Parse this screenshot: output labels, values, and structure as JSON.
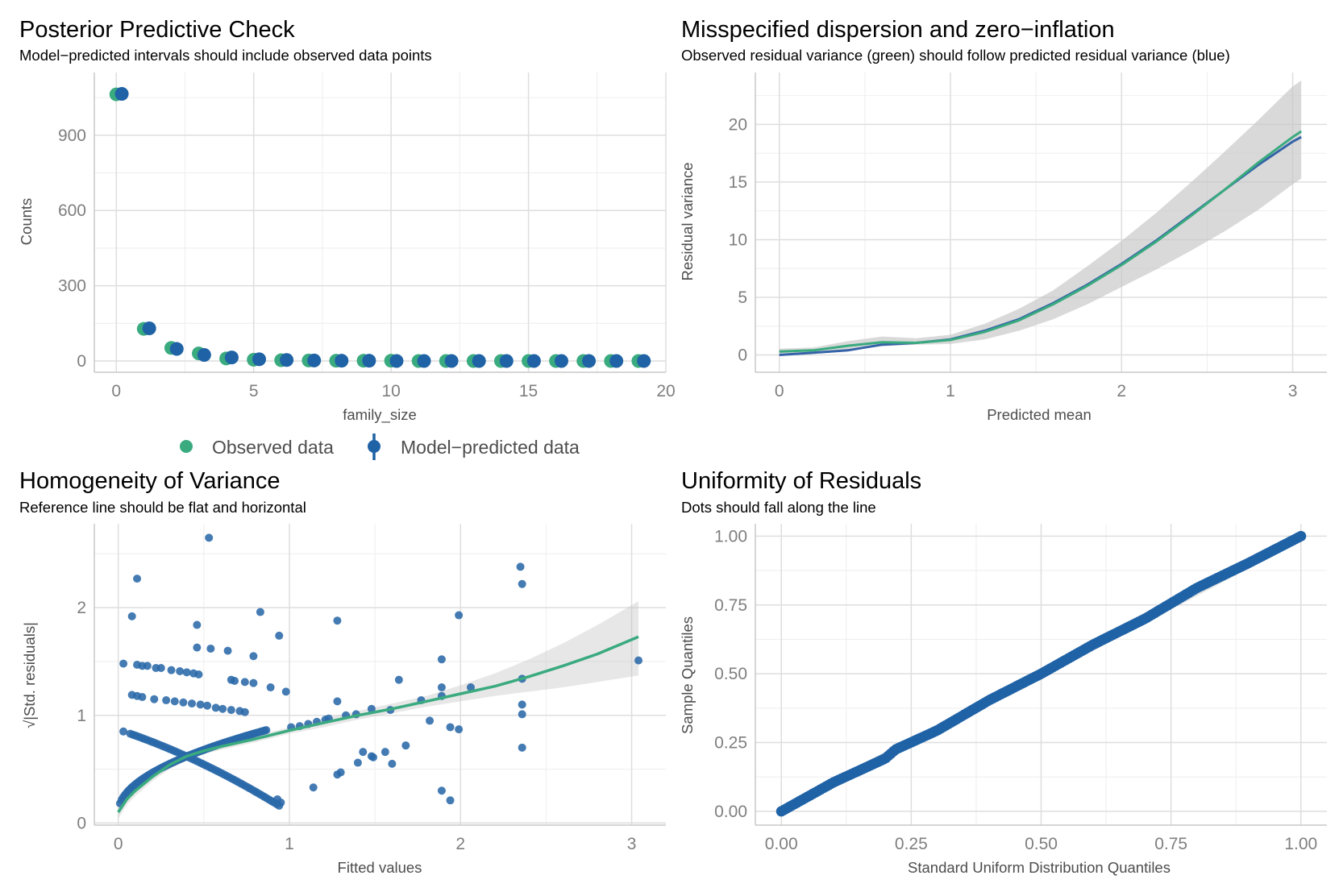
{
  "legend": {
    "observed": "Observed data",
    "predicted": "Model−predicted data"
  },
  "colors": {
    "observed": "#3aaa7f",
    "predicted": "#1f62a6",
    "points": "#2a69a8",
    "band": "#c4c4c4"
  },
  "chart_data": [
    {
      "id": "ppc",
      "type": "scatter",
      "title": "Posterior Predictive Check",
      "subtitle": "Model−predicted intervals should include observed data points",
      "xlabel": "family_size",
      "ylabel": "Counts",
      "xlim": [
        -0.8,
        20
      ],
      "ylim": [
        -45,
        1150
      ],
      "xticks": [
        0,
        5,
        10,
        15,
        20
      ],
      "yticks": [
        0,
        300,
        600,
        900
      ],
      "tick_labels_x": [
        "0",
        "5",
        "10",
        "15",
        "20"
      ],
      "tick_labels_y": [
        "0",
        "300",
        "600",
        "900"
      ],
      "series": [
        {
          "name": "Observed data",
          "x": [
            0,
            1,
            2,
            3,
            4,
            5,
            6,
            7,
            8,
            9,
            10,
            11,
            12,
            13,
            14,
            15,
            16,
            17,
            18,
            19
          ],
          "values": [
            1063,
            128,
            52,
            30,
            10,
            5,
            3,
            2,
            1,
            1,
            1,
            0,
            0,
            0,
            0,
            0,
            0,
            0,
            0,
            0
          ]
        },
        {
          "name": "Model−predicted data",
          "x": [
            0.2,
            1.2,
            2.2,
            3.2,
            4.2,
            5.2,
            6.2,
            7.2,
            8.2,
            9.2,
            10.2,
            11.2,
            12.2,
            13.2,
            14.2,
            15.2,
            16.2,
            17.2,
            18.2,
            19.2
          ],
          "values": [
            1065,
            130,
            48,
            24,
            14,
            7,
            4,
            2,
            1,
            1,
            0,
            0,
            0,
            0,
            0,
            0,
            0,
            0,
            0,
            0
          ]
        }
      ]
    },
    {
      "id": "disp",
      "type": "line",
      "title": "Misspecified dispersion and zero−inflation",
      "subtitle": "Observed residual variance (green) should follow predicted residual variance (blue)",
      "xlabel": "Predicted mean",
      "ylabel": "Residual variance",
      "xlim": [
        -0.14,
        3.2
      ],
      "ylim": [
        -1.5,
        24.5
      ],
      "xticks": [
        0,
        1,
        2,
        3
      ],
      "yticks": [
        0,
        5,
        10,
        15,
        20
      ],
      "tick_labels_x": [
        "0",
        "1",
        "2",
        "3"
      ],
      "tick_labels_y": [
        "0",
        "5",
        "10",
        "15",
        "20"
      ],
      "series": [
        {
          "name": "Observed residual variance",
          "x": [
            0,
            0.2,
            0.4,
            0.6,
            0.8,
            1.0,
            1.2,
            1.4,
            1.6,
            1.8,
            2.0,
            2.2,
            2.4,
            2.6,
            2.8,
            3.0,
            3.05
          ],
          "values": [
            0.3,
            0.4,
            0.8,
            1.1,
            1.05,
            1.3,
            2.0,
            3.0,
            4.4,
            6.0,
            7.8,
            9.8,
            12.0,
            14.3,
            16.7,
            18.9,
            19.4
          ]
        },
        {
          "name": "Predicted residual variance",
          "x": [
            0,
            0.2,
            0.4,
            0.6,
            0.8,
            1.0,
            1.2,
            1.4,
            1.6,
            1.8,
            2.0,
            2.2,
            2.4,
            2.6,
            2.8,
            3.0,
            3.05
          ],
          "values": [
            0.0,
            0.2,
            0.4,
            0.9,
            1.05,
            1.35,
            2.1,
            3.1,
            4.5,
            6.1,
            7.9,
            9.9,
            12.1,
            14.3,
            16.5,
            18.5,
            18.9
          ]
        },
        {
          "name": "Confidence band",
          "x": [
            0,
            0.2,
            0.4,
            0.6,
            0.8,
            1.0,
            1.2,
            1.4,
            1.6,
            1.8,
            2.0,
            2.2,
            2.4,
            2.6,
            2.8,
            3.0,
            3.05
          ],
          "lower": [
            0.0,
            0.15,
            0.4,
            0.75,
            0.9,
            0.95,
            1.35,
            2.1,
            3.1,
            4.4,
            5.9,
            7.4,
            9.0,
            10.7,
            12.6,
            14.8,
            15.3
          ],
          "upper": [
            0.55,
            0.65,
            1.2,
            1.6,
            1.45,
            1.75,
            2.7,
            4.0,
            5.6,
            7.7,
            9.9,
            12.3,
            14.9,
            17.6,
            20.4,
            23.3,
            23.8
          ]
        }
      ]
    },
    {
      "id": "homog",
      "type": "scatter",
      "title": "Homogeneity of Variance",
      "subtitle": "Reference line should be flat and horizontal",
      "xlabel": "Fitted values",
      "ylabel": "√|Std. residuals|",
      "xlim": [
        -0.14,
        3.2
      ],
      "ylim": [
        -0.02,
        2.78
      ],
      "xticks": [
        0,
        1,
        2,
        3
      ],
      "yticks": [
        0,
        1,
        2
      ],
      "tick_labels_x": [
        "0",
        "1",
        "2",
        "3"
      ],
      "tick_labels_y": [
        "0",
        "1",
        "2"
      ],
      "points": [
        [
          0.53,
          2.65
        ],
        [
          0.11,
          2.27
        ],
        [
          0.08,
          1.92
        ],
        [
          0.46,
          1.84
        ],
        [
          0.83,
          1.96
        ],
        [
          0.94,
          1.74
        ],
        [
          1.28,
          1.88
        ],
        [
          2.35,
          2.38
        ],
        [
          2.36,
          2.22
        ],
        [
          1.99,
          1.93
        ],
        [
          0.46,
          1.63
        ],
        [
          0.54,
          1.62
        ],
        [
          0.64,
          1.6
        ],
        [
          0.79,
          1.55
        ],
        [
          0.89,
          1.26
        ],
        [
          0.98,
          1.22
        ],
        [
          1.28,
          1.13
        ],
        [
          1.64,
          1.33
        ],
        [
          1.89,
          1.52
        ],
        [
          1.89,
          1.26
        ],
        [
          1.89,
          1.18
        ],
        [
          2.06,
          1.26
        ],
        [
          2.36,
          1.34
        ],
        [
          2.36,
          1.1
        ],
        [
          2.36,
          1.01
        ],
        [
          2.36,
          0.7
        ],
        [
          3.04,
          1.51
        ],
        [
          1.33,
          1.0
        ],
        [
          1.39,
          1.01
        ],
        [
          1.48,
          1.06
        ],
        [
          1.59,
          1.05
        ],
        [
          1.77,
          1.14
        ],
        [
          1.82,
          0.95
        ],
        [
          1.94,
          0.89
        ],
        [
          1.99,
          0.87
        ],
        [
          1.14,
          0.33
        ],
        [
          1.28,
          0.45
        ],
        [
          1.3,
          0.47
        ],
        [
          1.4,
          0.56
        ],
        [
          1.43,
          0.66
        ],
        [
          1.48,
          0.62
        ],
        [
          1.49,
          0.61
        ],
        [
          1.56,
          0.66
        ],
        [
          1.6,
          0.55
        ],
        [
          1.68,
          0.72
        ],
        [
          1.89,
          0.3
        ],
        [
          1.94,
          0.21
        ],
        [
          0.95,
          0.19
        ],
        [
          0.93,
          0.22
        ],
        [
          0.03,
          1.48
        ],
        [
          0.03,
          0.85
        ],
        [
          0.08,
          1.19
        ],
        [
          0.11,
          1.18
        ],
        [
          0.11,
          1.47
        ],
        [
          0.14,
          1.17
        ],
        [
          0.14,
          1.46
        ],
        [
          0.17,
          1.46
        ],
        [
          0.21,
          1.15
        ],
        [
          0.22,
          1.44
        ],
        [
          0.28,
          1.14
        ],
        [
          0.25,
          1.44
        ],
        [
          0.31,
          1.42
        ],
        [
          0.33,
          1.13
        ],
        [
          0.36,
          1.41
        ],
        [
          0.38,
          1.12
        ],
        [
          0.4,
          1.4
        ],
        [
          0.43,
          1.11
        ],
        [
          0.44,
          1.39
        ],
        [
          0.47,
          1.38
        ],
        [
          0.48,
          1.1
        ],
        [
          0.52,
          1.09
        ],
        [
          0.57,
          1.07
        ],
        [
          0.61,
          1.06
        ],
        [
          0.66,
          1.05
        ],
        [
          0.71,
          1.04
        ],
        [
          0.74,
          1.03
        ],
        [
          0.66,
          1.33
        ],
        [
          0.68,
          1.32
        ],
        [
          0.74,
          1.31
        ],
        [
          0.79,
          1.3
        ],
        [
          1.01,
          0.89
        ],
        [
          1.06,
          0.9
        ],
        [
          1.11,
          0.92
        ],
        [
          1.16,
          0.94
        ],
        [
          1.21,
          0.96
        ],
        [
          1.23,
          0.97
        ]
      ],
      "smooth_x": [
        0,
        0.05,
        0.1,
        0.2,
        0.3,
        0.4,
        0.5,
        0.6,
        0.8,
        1.0,
        1.2,
        1.4,
        1.6,
        1.8,
        2.0,
        2.2,
        2.4,
        2.6,
        2.8,
        3.04
      ],
      "smooth_y": [
        0.1,
        0.22,
        0.3,
        0.43,
        0.54,
        0.62,
        0.67,
        0.71,
        0.78,
        0.86,
        0.93,
        1.0,
        1.06,
        1.13,
        1.2,
        1.27,
        1.36,
        1.46,
        1.57,
        1.73
      ],
      "band_lower": [
        0.04,
        0.17,
        0.25,
        0.39,
        0.5,
        0.58,
        0.64,
        0.68,
        0.75,
        0.83,
        0.89,
        0.96,
        1.02,
        1.08,
        1.13,
        1.18,
        1.22,
        1.26,
        1.31,
        1.37
      ],
      "band_upper": [
        0.16,
        0.27,
        0.35,
        0.47,
        0.58,
        0.66,
        0.7,
        0.74,
        0.81,
        0.89,
        0.97,
        1.04,
        1.11,
        1.18,
        1.28,
        1.39,
        1.52,
        1.67,
        1.84,
        2.06
      ]
    },
    {
      "id": "unif",
      "type": "scatter",
      "title": "Uniformity of Residuals",
      "subtitle": "Dots should fall along the line",
      "xlabel": "Standard Uniform Distribution Quantiles",
      "ylabel": "Sample Quantiles",
      "xlim": [
        -0.05,
        1.05
      ],
      "ylim": [
        -0.05,
        1.045
      ],
      "xticks": [
        0,
        0.25,
        0.5,
        0.75,
        1
      ],
      "yticks": [
        0,
        0.25,
        0.5,
        0.75,
        1
      ],
      "tick_labels_x": [
        "0.00",
        "0.25",
        "0.50",
        "0.75",
        "1.00"
      ],
      "tick_labels_y": [
        "0.00",
        "0.25",
        "0.50",
        "0.75",
        "1.00"
      ],
      "n_points": 200,
      "deviation_x": [
        0,
        0.1,
        0.2,
        0.22,
        0.3,
        0.4,
        0.5,
        0.6,
        0.7,
        0.8,
        0.9,
        1
      ],
      "deviation_y": [
        0,
        0.005,
        -0.008,
        0.005,
        -0.006,
        0.004,
        0.0,
        0.006,
        0.0,
        0.012,
        0.003,
        0
      ]
    }
  ]
}
